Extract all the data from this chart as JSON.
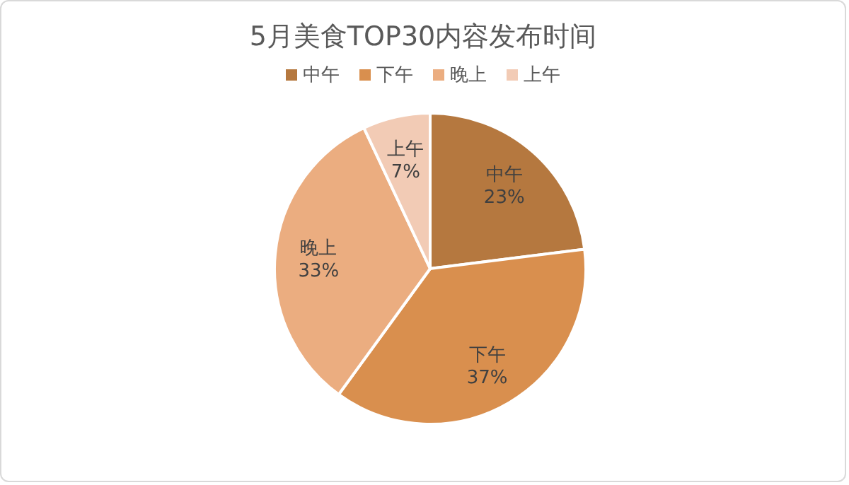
{
  "chart_data": {
    "type": "pie",
    "title": "5月美食TOP30内容发布时间",
    "categories": [
      "中午",
      "下午",
      "晚上",
      "上午"
    ],
    "values": [
      23,
      37,
      33,
      7
    ],
    "colors": [
      "#b5783f",
      "#d98f4e",
      "#ebad80",
      "#f2cbb5"
    ],
    "value_labels": [
      "23%",
      "37%",
      "33%",
      "7%"
    ],
    "legend": "top"
  }
}
